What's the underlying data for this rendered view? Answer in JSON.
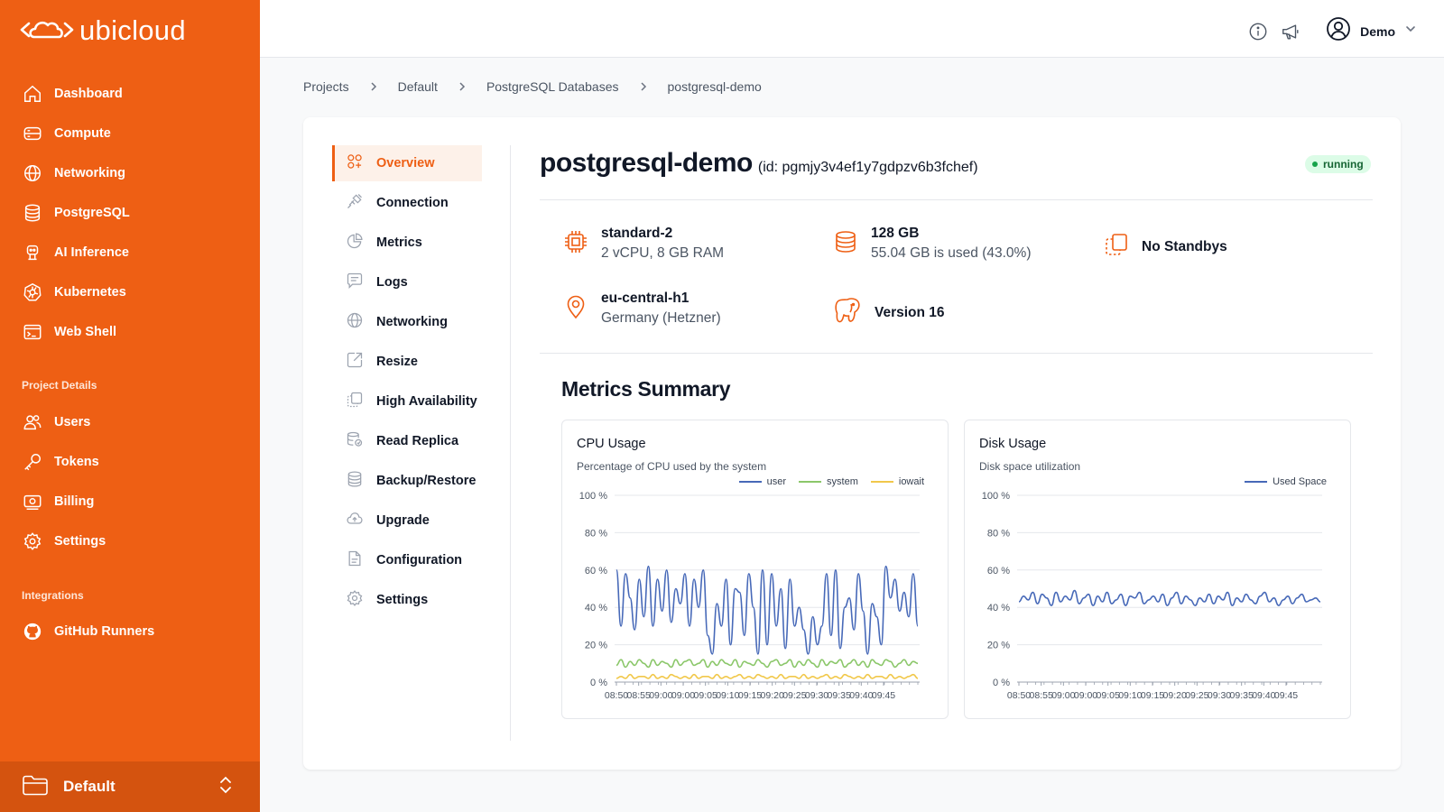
{
  "brand": {
    "name": "ubicloud",
    "accent": "#ee5f14"
  },
  "sidebar": {
    "main_items": [
      {
        "label": "Dashboard",
        "icon": "home-icon"
      },
      {
        "label": "Compute",
        "icon": "server-icon"
      },
      {
        "label": "Networking",
        "icon": "globe-icon"
      },
      {
        "label": "PostgreSQL",
        "icon": "database-icon"
      },
      {
        "label": "AI Inference",
        "icon": "robot-icon"
      },
      {
        "label": "Kubernetes",
        "icon": "kubernetes-icon"
      },
      {
        "label": "Web Shell",
        "icon": "terminal-icon"
      }
    ],
    "project_section_label": "Project Details",
    "project_items": [
      {
        "label": "Users",
        "icon": "users-icon"
      },
      {
        "label": "Tokens",
        "icon": "key-icon"
      },
      {
        "label": "Billing",
        "icon": "billing-icon"
      },
      {
        "label": "Settings",
        "icon": "gear-icon"
      }
    ],
    "integrations_section_label": "Integrations",
    "integration_items": [
      {
        "label": "GitHub Runners",
        "icon": "github-icon"
      }
    ],
    "project_switcher": {
      "label": "Default"
    }
  },
  "topbar": {
    "user_name": "Demo"
  },
  "breadcrumb": [
    "Projects",
    "Default",
    "PostgreSQL Databases",
    "postgresql-demo"
  ],
  "resource_menu": [
    {
      "label": "Overview",
      "icon": "overview-icon",
      "active": true
    },
    {
      "label": "Connection",
      "icon": "plug-icon"
    },
    {
      "label": "Metrics",
      "icon": "pie-chart-icon"
    },
    {
      "label": "Logs",
      "icon": "chat-icon"
    },
    {
      "label": "Networking",
      "icon": "globe-icon"
    },
    {
      "label": "Resize",
      "icon": "resize-icon"
    },
    {
      "label": "High Availability",
      "icon": "copy-icon"
    },
    {
      "label": "Read Replica",
      "icon": "replica-icon"
    },
    {
      "label": "Backup/Restore",
      "icon": "database-icon"
    },
    {
      "label": "Upgrade",
      "icon": "cloud-upload-icon"
    },
    {
      "label": "Configuration",
      "icon": "file-icon"
    },
    {
      "label": "Settings",
      "icon": "gear-icon"
    }
  ],
  "database": {
    "name": "postgresql-demo",
    "id_text": "(id: pgmjy3v4ef1y7gdpzv6b3fchef)",
    "status": "running",
    "size_title": "standard-2",
    "size_detail": "2 vCPU, 8 GB RAM",
    "storage_title": "128 GB",
    "storage_detail": "55.04 GB is used (43.0%)",
    "standby": "No Standbys",
    "location_title": "eu-central-h1",
    "location_detail": "Germany (Hetzner)",
    "version": "Version 16"
  },
  "metrics": {
    "section_title": "Metrics Summary",
    "cpu": {
      "title": "CPU Usage",
      "subtitle": "Percentage of CPU used by the system",
      "legend": [
        {
          "name": "user",
          "color": "#4769b8"
        },
        {
          "name": "system",
          "color": "#8bc76a"
        },
        {
          "name": "iowait",
          "color": "#f1c84b"
        }
      ]
    },
    "disk": {
      "title": "Disk Usage",
      "subtitle": "Disk space utilization",
      "legend": [
        {
          "name": "Used Space",
          "color": "#4769b8"
        }
      ]
    }
  },
  "chart_data": [
    {
      "type": "line",
      "title": "CPU Usage",
      "subtitle": "Percentage of CPU used by the system",
      "y_ticks": [
        "100 %",
        "80 %",
        "60 %",
        "40 %",
        "20 %",
        "0 %"
      ],
      "ylim": [
        0,
        100
      ],
      "x_ticks": [
        "08:50",
        "08:55",
        "09:00",
        "09:00",
        "09:05",
        "09:10",
        "09:15",
        "09:20",
        "09:25",
        "09:30",
        "09:35",
        "09:40",
        "09:45"
      ],
      "series": [
        {
          "name": "user",
          "color": "#4769b8",
          "values": [
            60,
            30,
            58,
            45,
            28,
            55,
            35,
            62,
            30,
            55,
            38,
            60,
            32,
            50,
            42,
            58,
            30,
            55,
            40,
            60,
            25,
            15,
            42,
            30,
            55,
            20,
            50,
            48,
            25,
            58,
            40,
            15,
            60,
            20,
            58,
            30,
            50,
            18,
            55,
            30,
            40,
            28,
            15,
            35,
            20,
            30,
            58,
            25,
            60,
            18,
            40,
            45,
            28,
            58,
            38,
            15,
            42,
            35,
            20,
            62,
            45,
            55,
            38,
            48,
            35,
            58,
            30
          ]
        },
        {
          "name": "system",
          "color": "#8bc76a",
          "values": [
            9,
            12,
            8,
            11,
            9,
            12,
            10,
            8,
            12,
            9,
            11,
            10,
            8,
            12,
            9,
            11,
            12,
            9,
            10,
            12,
            8,
            11,
            9,
            12,
            10,
            9,
            12,
            8,
            11,
            10,
            9,
            12,
            10,
            8,
            11,
            12,
            9,
            10,
            12,
            8,
            11,
            9,
            12,
            10,
            8,
            12,
            9,
            11,
            10,
            12,
            8,
            10,
            12,
            9,
            11,
            8,
            12,
            10,
            9,
            12,
            11,
            8,
            10,
            12,
            9,
            11,
            10
          ]
        },
        {
          "name": "iowait",
          "color": "#f1c84b",
          "values": [
            2,
            3,
            2,
            4,
            2,
            3,
            3,
            2,
            4,
            2,
            3,
            2,
            4,
            3,
            2,
            3,
            2,
            4,
            2,
            3,
            3,
            2,
            4,
            2,
            3,
            2,
            3,
            4,
            2,
            3,
            2,
            4,
            3,
            2,
            3,
            2,
            4,
            2,
            3,
            3,
            2,
            4,
            2,
            3,
            2,
            3,
            4,
            2,
            3,
            2,
            4,
            3,
            2,
            3,
            2,
            4,
            2,
            3,
            3,
            2,
            4,
            2,
            3,
            2,
            3,
            4,
            2
          ]
        }
      ]
    },
    {
      "type": "line",
      "title": "Disk Usage",
      "subtitle": "Disk space utilization",
      "y_ticks": [
        "100 %",
        "80 %",
        "60 %",
        "40 %",
        "20 %",
        "0 %"
      ],
      "ylim": [
        0,
        100
      ],
      "x_ticks": [
        "08:50",
        "08:55",
        "09:00",
        "09:00",
        "09:05",
        "09:10",
        "09:15",
        "09:20",
        "09:25",
        "09:30",
        "09:35",
        "09:40",
        "09:45"
      ],
      "series": [
        {
          "name": "Used Space",
          "color": "#4769b8",
          "values": [
            43,
            46,
            44,
            48,
            42,
            47,
            45,
            41,
            48,
            43,
            46,
            44,
            49,
            42,
            45,
            47,
            41,
            46,
            43,
            48,
            42,
            44,
            47,
            41,
            46,
            45,
            48,
            42,
            44,
            46,
            43,
            47,
            41,
            45,
            48,
            42,
            46,
            44,
            41,
            45,
            43,
            47,
            42,
            46,
            44,
            48,
            41,
            45,
            43,
            47,
            44,
            42,
            46,
            48,
            43,
            45,
            41,
            44,
            46,
            42,
            45,
            47,
            43,
            44,
            45,
            43
          ]
        }
      ]
    }
  ]
}
